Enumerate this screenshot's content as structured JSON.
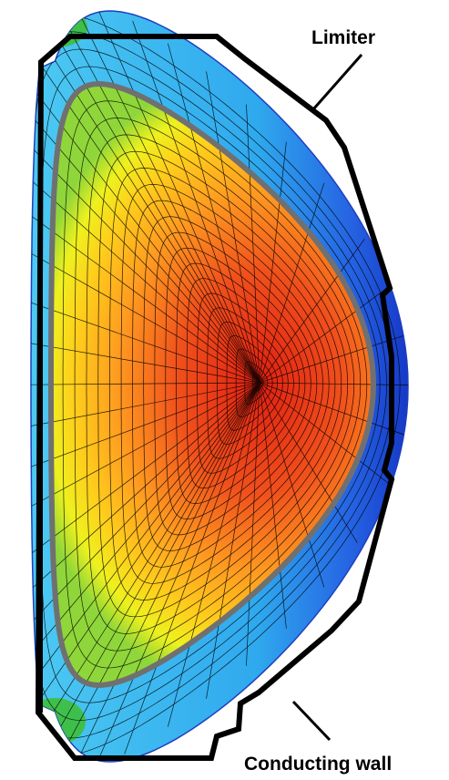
{
  "labels": {
    "limiter": "Limiter",
    "conducting_wall": "Conducting wall"
  },
  "colors": {
    "core": "#e8341c",
    "mid": "#ffb21e",
    "edge_yellow": "#f4f016",
    "edge_green": "#62c43a",
    "outer_cyan": "#3ec2ef",
    "outer_blue": "#1a4fd8",
    "limiter_line": "#000000",
    "plasma_boundary": "#6f6f6f",
    "mesh": "#000000"
  },
  "mesh": {
    "radial_lines": 48,
    "flux_surfaces": 20
  }
}
